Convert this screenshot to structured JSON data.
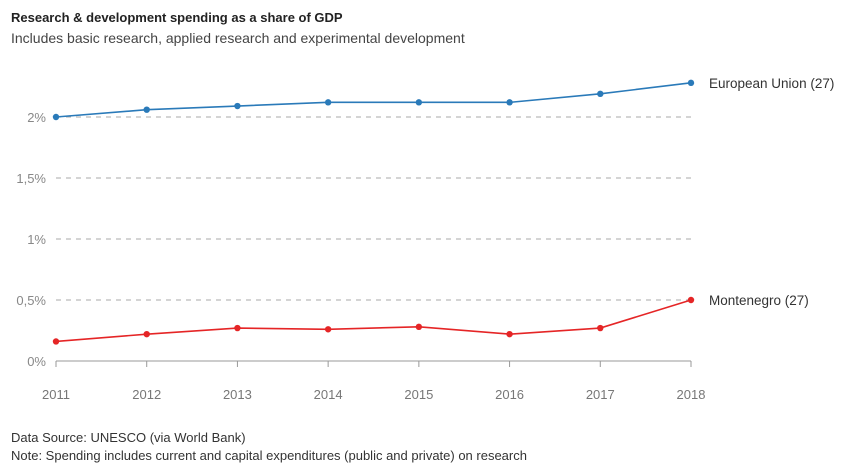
{
  "title": "Research & development spending as a share of GDP",
  "subtitle": "Includes basic research, applied research and experimental development",
  "source": "Data Source: UNESCO (via World Bank)",
  "note": "Note: Spending includes current and capital expenditures (public and private) on research",
  "chart_data": {
    "type": "line",
    "x": [
      2011,
      2012,
      2013,
      2014,
      2015,
      2016,
      2017,
      2018
    ],
    "x_tick_labels": [
      "2011",
      "2012",
      "2013",
      "2014",
      "2015",
      "2016",
      "2017",
      "2018"
    ],
    "y_ticks": [
      0,
      0.5,
      1,
      1.5,
      2
    ],
    "y_tick_labels": [
      "0%",
      "0,5%",
      "1%",
      "1,5%",
      "2%"
    ],
    "ylim": [
      0,
      2.4
    ],
    "grid": "horizontal dashed",
    "series": [
      {
        "name": "European Union (27)",
        "color": "#2a7ab9",
        "values": [
          2.0,
          2.06,
          2.09,
          2.12,
          2.12,
          2.12,
          2.19,
          2.28
        ]
      },
      {
        "name": "Montenegro (27)",
        "color": "#e52526",
        "values": [
          0.16,
          0.22,
          0.27,
          0.26,
          0.28,
          0.22,
          0.27,
          0.5
        ]
      }
    ]
  }
}
